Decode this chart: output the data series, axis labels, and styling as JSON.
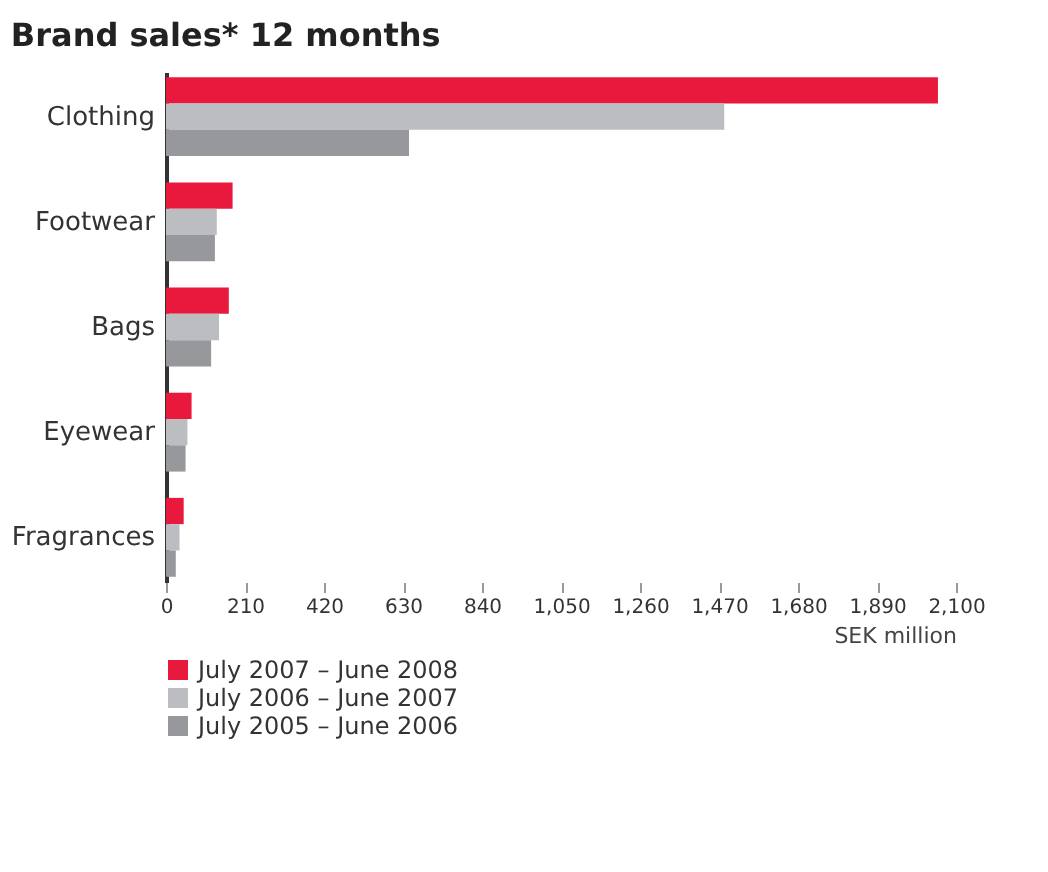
{
  "chart_data": {
    "type": "bar",
    "orientation": "horizontal",
    "title": "Brand sales* 12 months",
    "xlabel": "SEK million",
    "categories": [
      "Clothing",
      "Footwear",
      "Bags",
      "Eyewear",
      "Fragrances"
    ],
    "series": [
      {
        "name": "July 2007 – June 2008",
        "color": "#e8193c",
        "values": [
          2052,
          177,
          167,
          68,
          47
        ]
      },
      {
        "name": "July 2006 – June 2007",
        "color": "#bcbdc0",
        "values": [
          1484,
          135,
          141,
          57,
          36
        ]
      },
      {
        "name": "July 2005 – June 2006",
        "color": "#97989c",
        "values": [
          646,
          130,
          120,
          52,
          26
        ]
      }
    ],
    "xlim": [
      0,
      2100
    ],
    "xticks": [
      0,
      {
        "value": 210,
        "label": "210"
      },
      420,
      630,
      840,
      {
        "value": 1050,
        "label": "1,050"
      },
      {
        "value": 1260,
        "label": "1,260"
      },
      {
        "value": 1470,
        "label": "1,470"
      },
      {
        "value": 1680,
        "label": "1,680"
      },
      {
        "value": 1890,
        "label": "1,890"
      },
      {
        "value": 2100,
        "label": "2,100"
      }
    ],
    "grid": false,
    "legend": "bottom left"
  }
}
